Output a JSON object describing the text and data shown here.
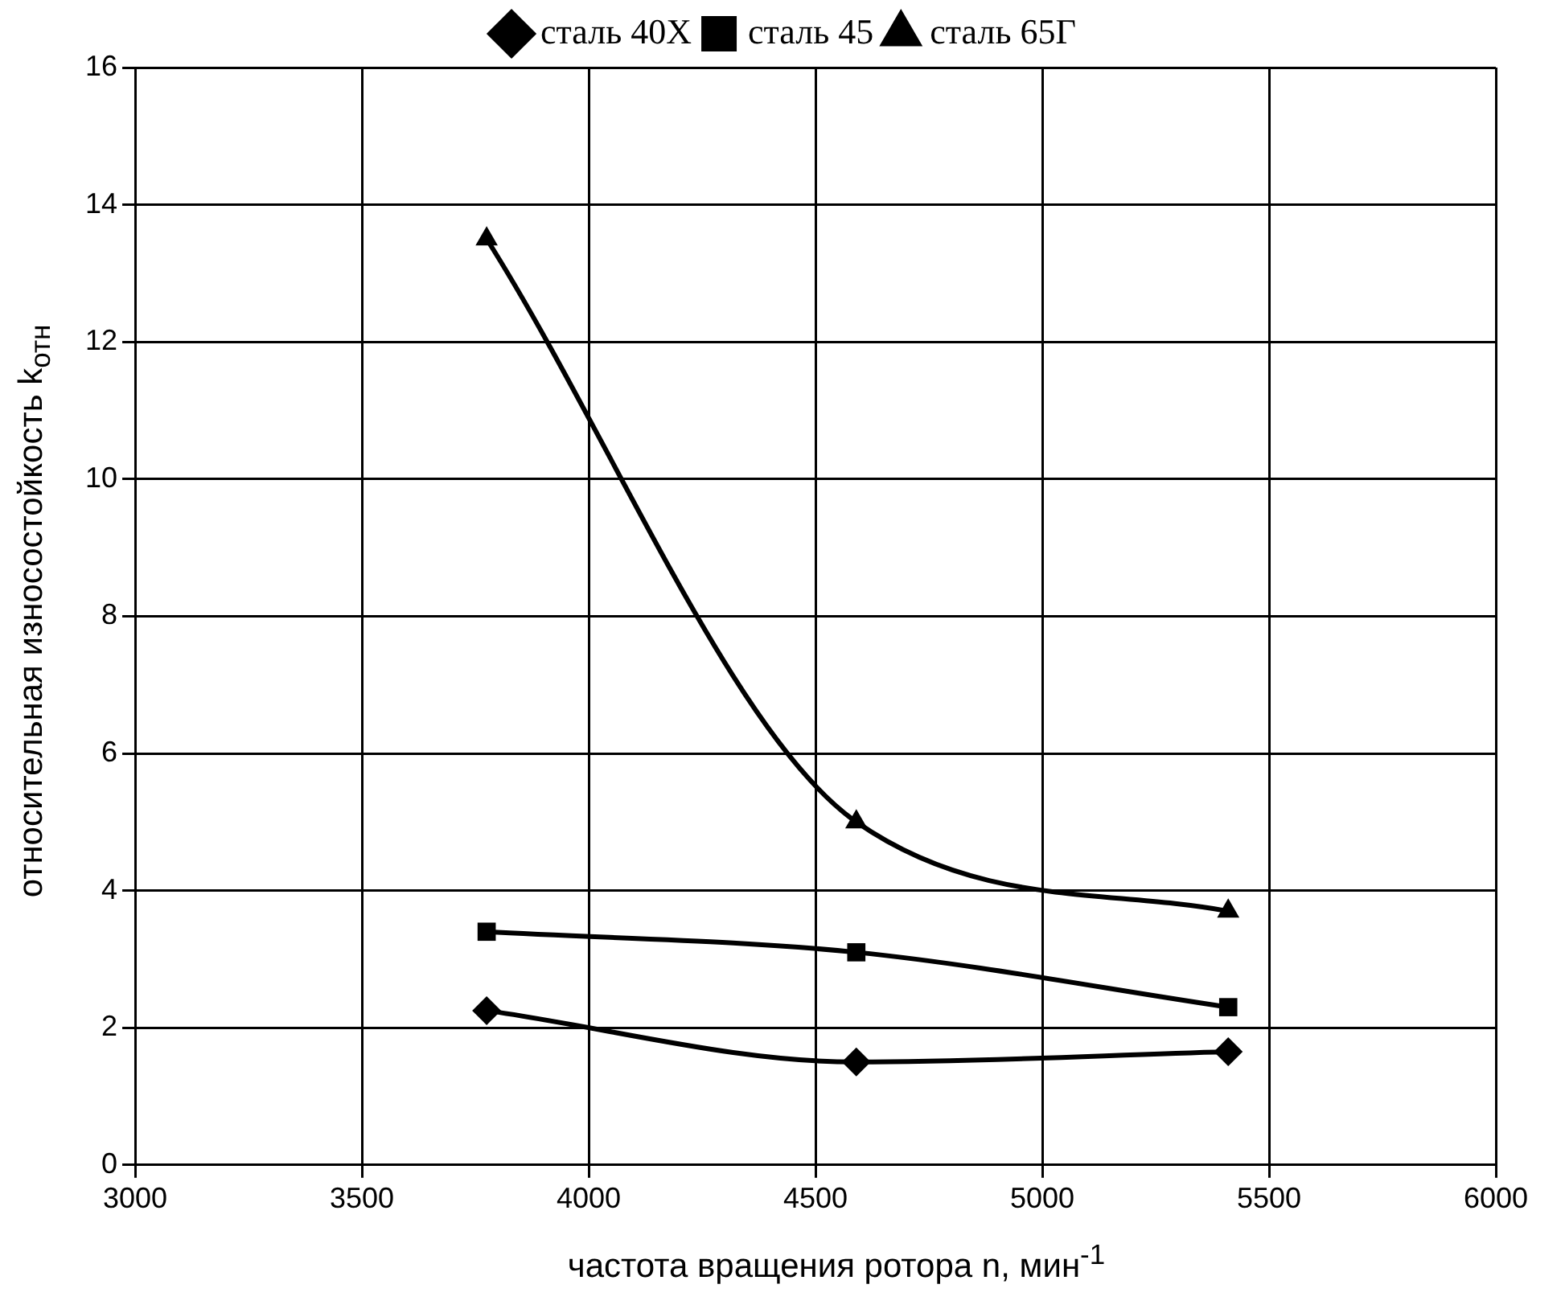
{
  "chart_data": {
    "type": "line",
    "xlabel": "частота вращения ротора n, мин$^{-1}$",
    "ylabel": "относительная износостойкость k$_{отн}$",
    "x": [
      3775,
      4590,
      5410
    ],
    "series": [
      {
        "name": "сталь 40Х",
        "color": "#000000",
        "marker": "diamond",
        "values": [
          2.25,
          1.5,
          1.65
        ]
      },
      {
        "name": "сталь 45",
        "color": "#000000",
        "marker": "square",
        "values": [
          3.4,
          3.1,
          2.3
        ]
      },
      {
        "name": "сталь 65Г",
        "color": "#000000",
        "marker": "triangle",
        "values": [
          13.5,
          5.0,
          3.7
        ]
      }
    ],
    "xlim": [
      3000,
      6000
    ],
    "xticks": [
      3000,
      3500,
      4000,
      4500,
      5000,
      5500,
      6000
    ],
    "ylim": [
      0,
      16
    ],
    "yticks": [
      0,
      2,
      4,
      6,
      8,
      10,
      12,
      14,
      16
    ],
    "grid": true,
    "legend": "top",
    "line_style": "solid"
  }
}
